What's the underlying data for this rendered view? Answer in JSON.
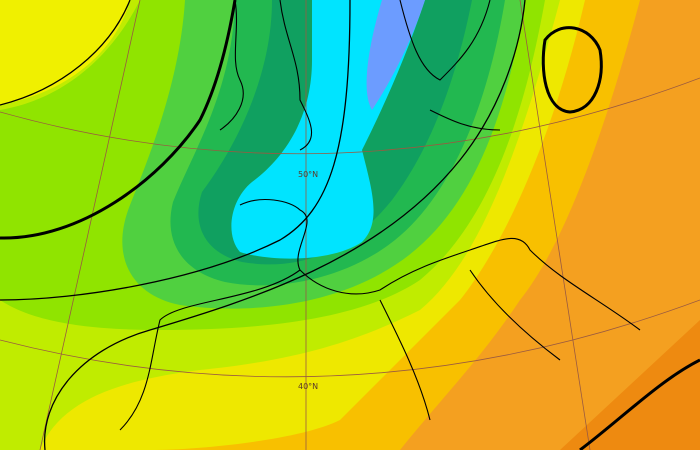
{
  "latitude_labels": [
    "50°N",
    "40°N"
  ]
}
